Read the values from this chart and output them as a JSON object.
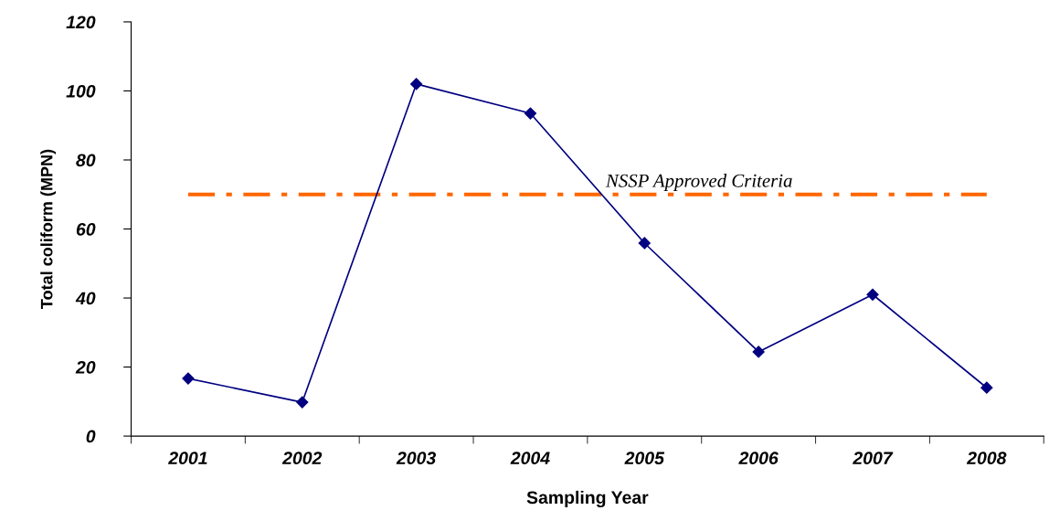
{
  "chart_data": {
    "type": "line",
    "xlabel": "Sampling Year",
    "ylabel": "Total coliform (MPN)",
    "categories": [
      "2001",
      "2002",
      "2003",
      "2004",
      "2005",
      "2006",
      "2007",
      "2008"
    ],
    "series": [
      {
        "color": "#000080",
        "values": [
          16.7,
          9.8,
          102,
          93.5,
          55.9,
          24.4,
          41,
          14
        ]
      }
    ],
    "ylim": [
      0,
      120
    ],
    "yticks": [
      0,
      20,
      40,
      60,
      80,
      100,
      120
    ],
    "grid": false,
    "legend": false,
    "marker": "diamond",
    "line_style": "solid",
    "ref_lines": [
      {
        "axis": "y",
        "value": 70,
        "label": "NSSP Approved Criteria",
        "color": "#ff6600",
        "line_style": "dashed"
      }
    ]
  }
}
